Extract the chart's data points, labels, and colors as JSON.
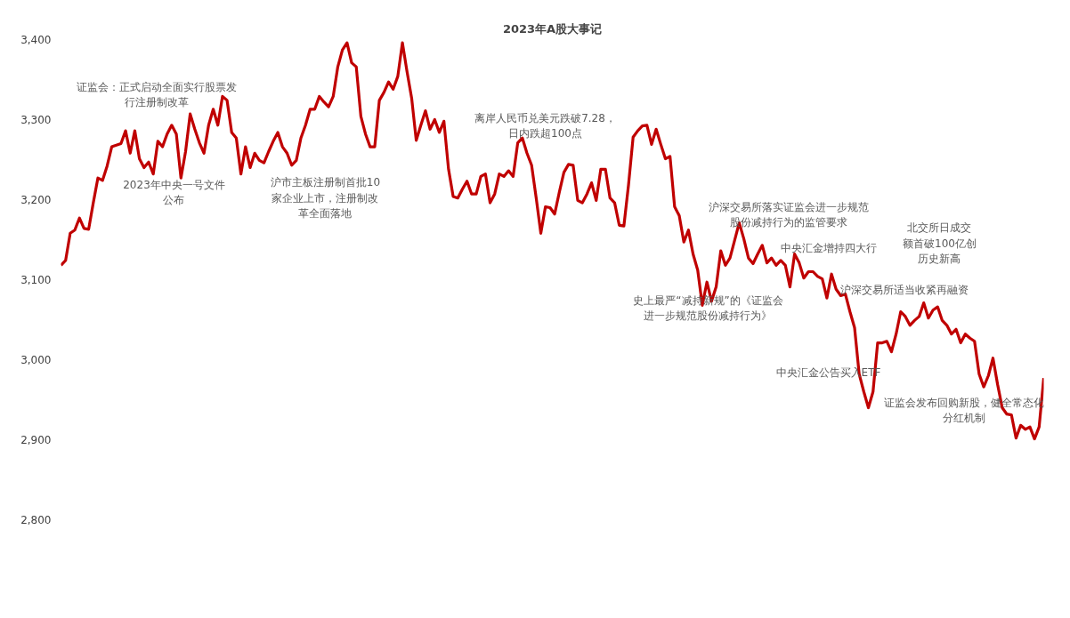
{
  "chart_data": {
    "type": "line",
    "title": "2023年A股大事记",
    "ylim": [
      2800,
      3400
    ],
    "yticks": [
      {
        "value": 2800,
        "label": "2,800"
      },
      {
        "value": 2900,
        "label": "2,900"
      },
      {
        "value": 3000,
        "label": "3,000"
      },
      {
        "value": 3100,
        "label": "3,100"
      },
      {
        "value": 3200,
        "label": "3,200"
      },
      {
        "value": 3300,
        "label": "3,300"
      },
      {
        "value": 3400,
        "label": "3,400"
      }
    ],
    "tick_labels": "y",
    "grid": false,
    "marker": "none",
    "line_style": "solid",
    "categories": [
      null,
      null,
      null,
      null,
      null,
      null,
      null,
      null,
      null,
      null,
      null,
      null,
      null,
      null,
      null,
      null,
      null,
      null,
      null,
      null,
      null,
      null,
      null,
      null,
      null,
      null,
      null,
      null,
      null,
      null,
      null,
      null,
      null,
      null,
      null,
      null,
      null,
      null,
      null,
      null,
      null,
      null,
      null,
      null,
      null,
      null,
      null,
      null,
      null,
      null,
      null,
      null,
      null,
      null,
      null,
      null,
      null,
      null,
      null,
      null,
      null,
      null,
      null,
      null,
      null,
      null,
      null,
      null,
      null,
      null,
      null,
      null,
      null,
      null,
      null,
      null,
      null,
      null,
      null,
      null,
      null,
      null,
      null,
      null,
      null,
      null,
      null,
      null,
      null,
      null,
      null,
      null,
      null,
      null,
      null,
      null,
      null,
      null,
      null,
      null,
      null,
      null,
      null,
      null,
      null,
      null,
      null,
      null,
      null,
      null,
      null,
      null,
      null,
      null,
      null,
      null,
      null,
      null,
      null,
      null,
      null,
      null,
      null,
      null,
      null,
      null,
      null,
      null,
      null,
      null,
      null,
      null,
      null,
      null,
      null,
      null,
      null,
      null,
      null,
      null,
      null,
      null,
      null,
      null,
      null,
      null,
      null,
      null,
      null,
      null,
      null,
      null,
      null,
      null,
      null,
      null,
      null,
      null,
      null,
      null,
      null,
      null,
      null,
      null,
      null,
      null,
      null,
      null,
      null,
      null,
      null,
      null,
      null,
      null,
      null,
      null,
      null,
      null,
      null,
      null,
      null,
      null,
      null,
      null,
      null,
      null,
      null,
      null,
      null,
      null,
      null,
      null,
      null,
      null,
      null,
      null,
      null,
      null,
      null,
      null,
      null,
      null,
      null,
      null,
      null,
      null,
      null,
      null,
      null,
      null,
      null,
      null,
      null,
      null
    ],
    "series": [
      {
        "color": "#c00000",
        "values": [
          3118,
          3124,
          3158,
          3162,
          3177,
          3164,
          3163,
          3196,
          3227,
          3224,
          3242,
          3266,
          3268,
          3270,
          3286,
          3258,
          3286,
          3251,
          3240,
          3247,
          3232,
          3273,
          3266,
          3282,
          3293,
          3282,
          3227,
          3260,
          3307,
          3288,
          3271,
          3258,
          3293,
          3313,
          3293,
          3329,
          3324,
          3284,
          3277,
          3232,
          3266,
          3240,
          3258,
          3249,
          3246,
          3260,
          3273,
          3284,
          3266,
          3258,
          3243,
          3249,
          3277,
          3293,
          3313,
          3313,
          3329,
          3322,
          3316,
          3329,
          3366,
          3387,
          3396,
          3371,
          3366,
          3304,
          3282,
          3266,
          3266,
          3324,
          3334,
          3347,
          3338,
          3354,
          3396,
          3360,
          3327,
          3274,
          3293,
          3311,
          3288,
          3300,
          3284,
          3298,
          3238,
          3204,
          3202,
          3213,
          3223,
          3207,
          3207,
          3229,
          3232,
          3196,
          3207,
          3232,
          3229,
          3236,
          3229,
          3271,
          3277,
          3258,
          3243,
          3202,
          3158,
          3191,
          3190,
          3182,
          3209,
          3234,
          3244,
          3243,
          3199,
          3196,
          3207,
          3221,
          3199,
          3238,
          3238,
          3202,
          3196,
          3168,
          3167,
          3218,
          3278,
          3286,
          3292,
          3293,
          3269,
          3288,
          3269,
          3251,
          3254,
          3191,
          3180,
          3147,
          3162,
          3132,
          3112,
          3068,
          3097,
          3073,
          3091,
          3136,
          3118,
          3127,
          3149,
          3171,
          3151,
          3127,
          3120,
          3132,
          3143,
          3121,
          3127,
          3118,
          3124,
          3118,
          3091,
          3132,
          3121,
          3102,
          3110,
          3110,
          3104,
          3101,
          3077,
          3107,
          3088,
          3080,
          3082,
          3060,
          3040,
          2982,
          2960,
          2940,
          2960,
          3021,
          3021,
          3023,
          3010,
          3032,
          3060,
          3054,
          3043,
          3049,
          3054,
          3071,
          3052,
          3062,
          3066,
          3049,
          3043,
          3032,
          3038,
          3021,
          3032,
          3027,
          3023,
          2982,
          2966,
          2980,
          3002,
          2969,
          2940,
          2932,
          2931,
          2902,
          2918,
          2913,
          2916,
          2901,
          2916,
          2977
        ]
      }
    ],
    "annotations": [
      "证监会：正式启动全面实行股票发行注册制改革",
      "2023年中央一号文件公布",
      "沪市主板注册制首批10家企业上市，注册制改革全面落地",
      "离岸人民币兑美元跌破7.28，日内跌超100点",
      "沪深交易所落实证监会进一步规范股份减持行为的监管要求",
      "中央汇金增持四大行",
      "北交所日成交额首破100亿创历史新高",
      "史上最严“减持新规”的《证监会进一步规范股份减持行为》",
      "沪深交易所适当收紧再融资",
      "中央汇金公告买入ETF",
      "证监会发布回购新股，健全常态化分红机制"
    ]
  }
}
